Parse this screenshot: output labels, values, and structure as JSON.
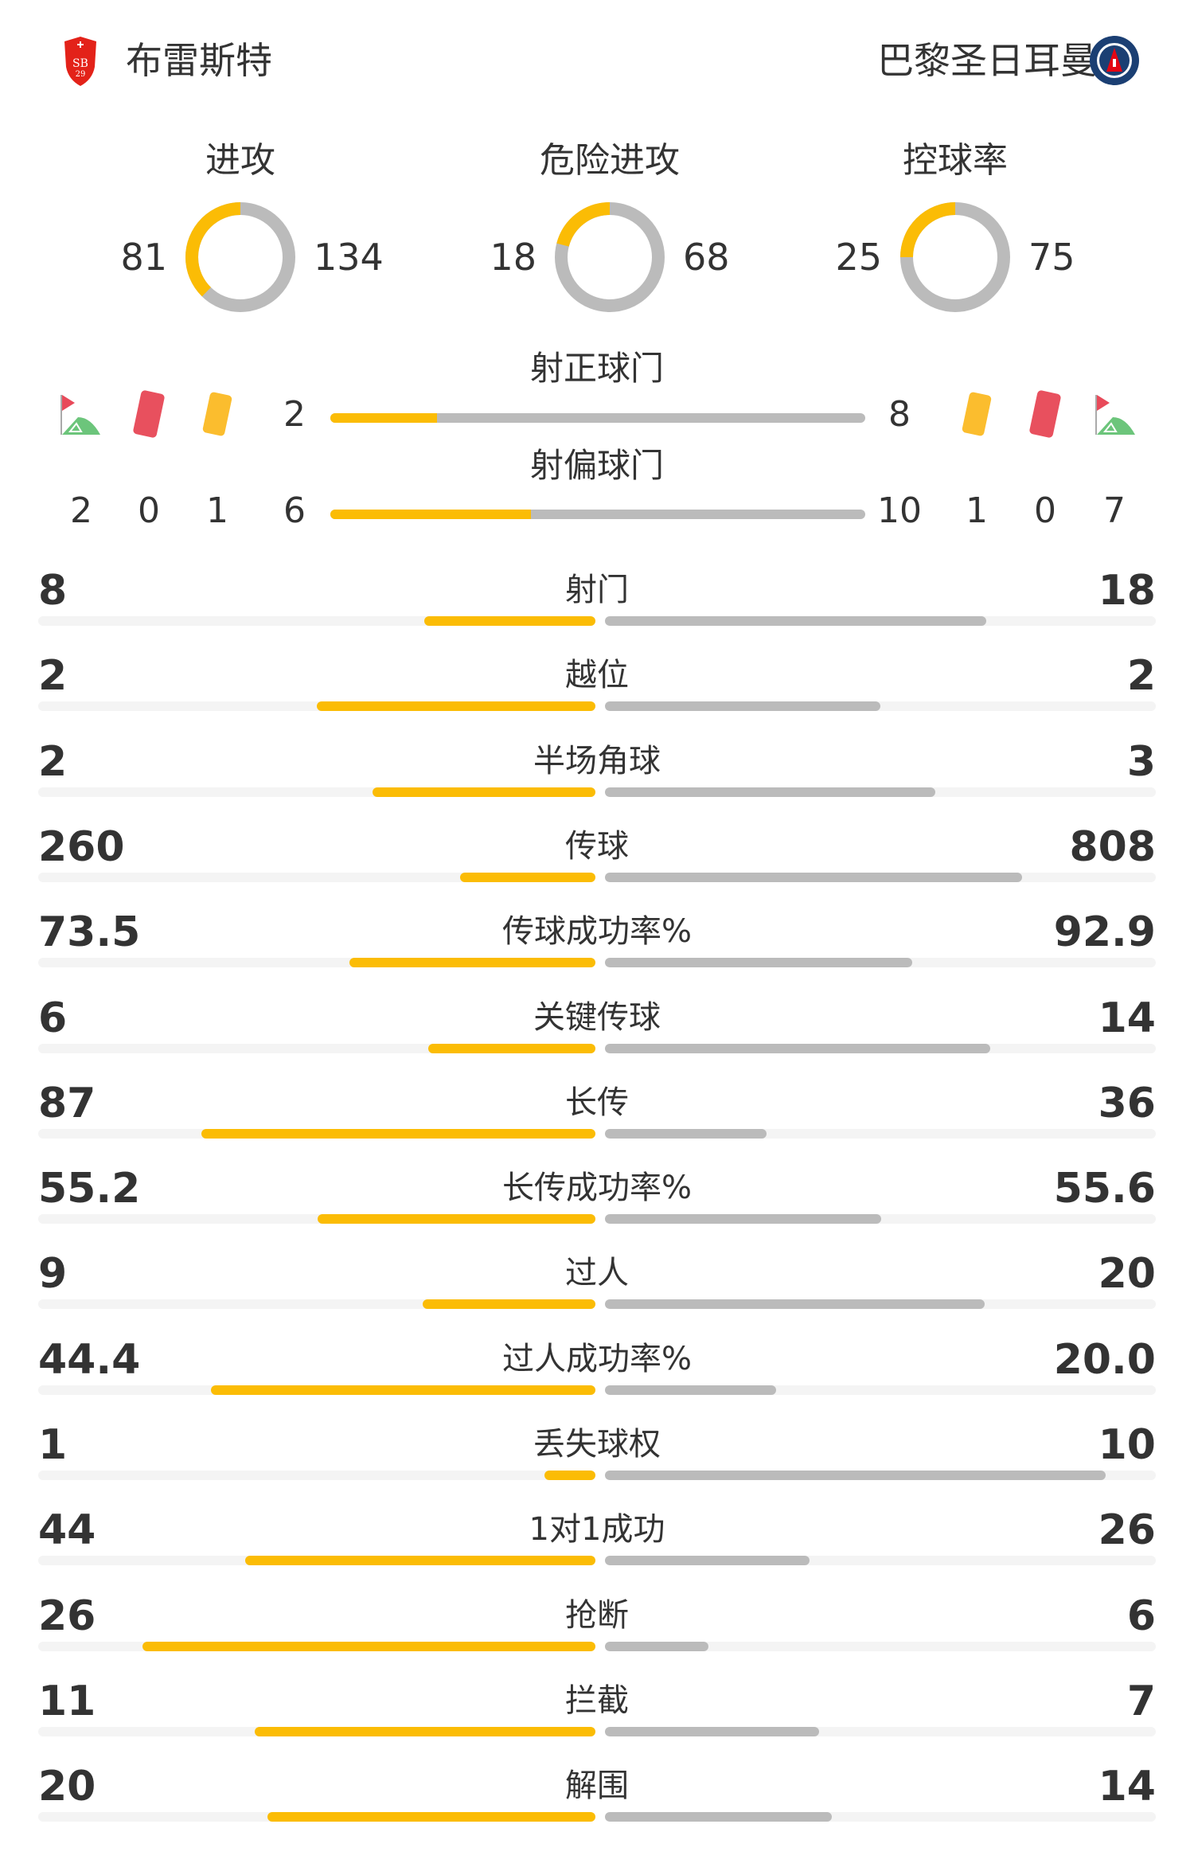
{
  "teams": {
    "home": {
      "name": "布雷斯特",
      "logo": "stade-brestois-crest-icon"
    },
    "away": {
      "name": "巴黎圣日耳曼",
      "logo": "psg-crest-icon"
    }
  },
  "colors": {
    "home": "#fbbc05",
    "away": "#bbbbbb",
    "track": "#f4f4f4",
    "text": "#333333"
  },
  "donuts": [
    {
      "label": "进攻",
      "home": 81,
      "away": 134
    },
    {
      "label": "危险进攻",
      "home": 18,
      "away": 68
    },
    {
      "label": "控球率",
      "home": 25,
      "away": 75
    }
  ],
  "shots_on_target": {
    "label": "射正球门",
    "home": 2,
    "away": 8
  },
  "shots_off_target": {
    "label": "射偏球门",
    "home": 6,
    "away": 10
  },
  "discipline": {
    "icons": [
      "corner-flag-icon",
      "red-card-icon",
      "yellow-card-icon"
    ],
    "home": {
      "corners": 2,
      "red_cards": 0,
      "yellow_cards": 1
    },
    "away": {
      "corners": 7,
      "red_cards": 0,
      "yellow_cards": 1
    }
  },
  "stats": [
    {
      "label": "射门",
      "home": "8",
      "away": "18"
    },
    {
      "label": "越位",
      "home": "2",
      "away": "2"
    },
    {
      "label": "半场角球",
      "home": "2",
      "away": "3"
    },
    {
      "label": "传球",
      "home": "260",
      "away": "808"
    },
    {
      "label": "传球成功率%",
      "home": "73.5",
      "away": "92.9"
    },
    {
      "label": "关键传球",
      "home": "6",
      "away": "14"
    },
    {
      "label": "长传",
      "home": "87",
      "away": "36"
    },
    {
      "label": "长传成功率%",
      "home": "55.2",
      "away": "55.6"
    },
    {
      "label": "过人",
      "home": "9",
      "away": "20"
    },
    {
      "label": "过人成功率%",
      "home": "44.4",
      "away": "20.0"
    },
    {
      "label": "丢失球权",
      "home": "1",
      "away": "10"
    },
    {
      "label": "1对1成功",
      "home": "44",
      "away": "26"
    },
    {
      "label": "抢断",
      "home": "26",
      "away": "6"
    },
    {
      "label": "拦截",
      "home": "11",
      "away": "7"
    },
    {
      "label": "解围",
      "home": "20",
      "away": "14"
    }
  ]
}
